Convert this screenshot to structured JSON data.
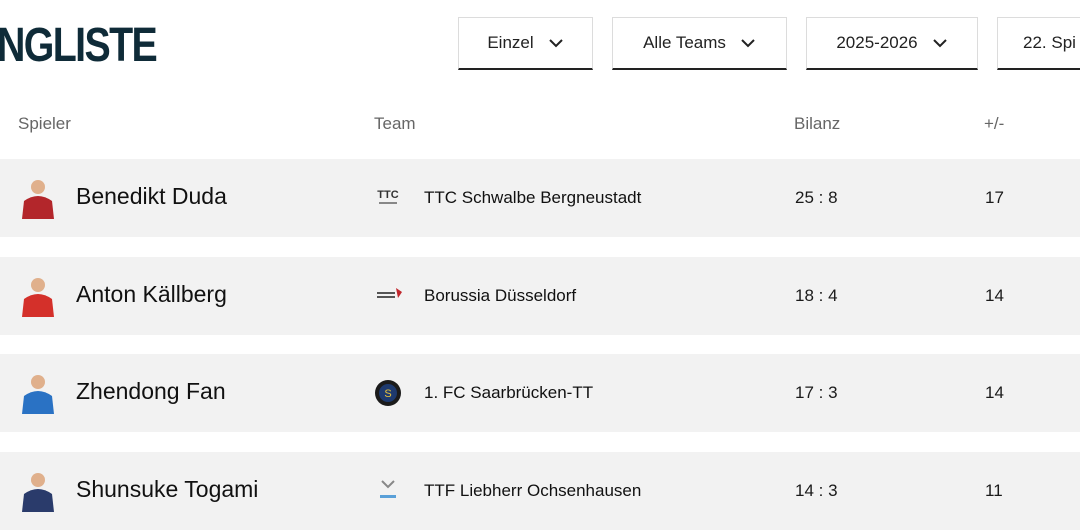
{
  "header": {
    "title": "NGLISTE",
    "filters": [
      "Einzel",
      "Alle Teams",
      "2025-2026",
      "22. Spi"
    ]
  },
  "table": {
    "columns": [
      "Spieler",
      "Team",
      "Bilanz",
      "+/-"
    ],
    "rows": [
      [
        "Benedikt Duda",
        "TTC Schwalbe Bergneustadt",
        "25 : 8",
        17
      ],
      [
        "Anton Källberg",
        "Borussia Düsseldorf",
        "18 : 4",
        14
      ],
      [
        "Zhendong Fan",
        "1. FC Saarbrücken-TT",
        "17 : 3",
        14
      ],
      [
        "Shunsuke Togami",
        "TTF Liebherr Ochsenhausen",
        "14 : 3",
        11
      ]
    ]
  }
}
